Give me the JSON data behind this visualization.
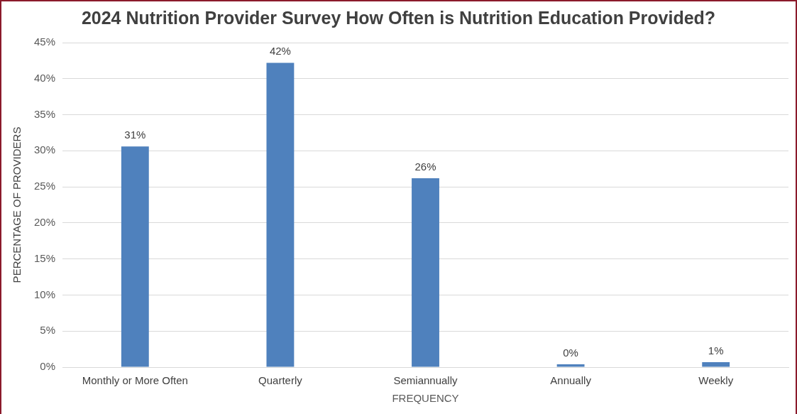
{
  "chart_data": {
    "type": "bar",
    "title": "2024 Nutrition Provider Survey How Often is Nutrition Education Provided?",
    "xlabel": "FREQUENCY",
    "ylabel": "PERCENTAGE OF PROVIDERS",
    "categories": [
      "Monthly or More Often",
      "Quarterly",
      "Semiannually",
      "Annually",
      "Weekly"
    ],
    "values": [
      30.6,
      42.2,
      26.2,
      0.4,
      0.7
    ],
    "value_labels": [
      "31%",
      "42%",
      "26%",
      "0%",
      "1%"
    ],
    "color": "#4f81bd",
    "ylim": [
      0,
      45
    ],
    "yticks": [
      {
        "value": 0,
        "label": "0%"
      },
      {
        "value": 5,
        "label": "5%"
      },
      {
        "value": 10,
        "label": "10%"
      },
      {
        "value": 15,
        "label": "15%"
      },
      {
        "value": 20,
        "label": "20%"
      },
      {
        "value": 25,
        "label": "25%"
      },
      {
        "value": 30,
        "label": "30%"
      },
      {
        "value": 35,
        "label": "35%"
      },
      {
        "value": 40,
        "label": "40%"
      },
      {
        "value": 45,
        "label": "45%"
      }
    ],
    "grid": "y",
    "legend": false
  }
}
